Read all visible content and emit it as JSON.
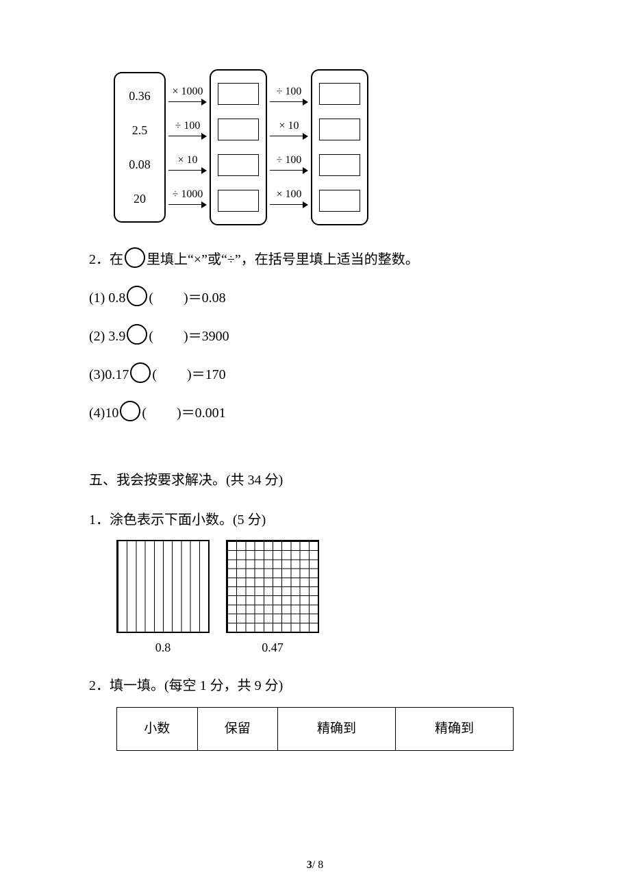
{
  "flow": {
    "rows": [
      {
        "start": "0.36",
        "op1": "× 1000",
        "op2": "÷ 100"
      },
      {
        "start": "2.5",
        "op1": "÷ 100",
        "op2": "× 10"
      },
      {
        "start": "0.08",
        "op1": "× 10",
        "op2": "÷ 100"
      },
      {
        "start": "20",
        "op1": "÷ 1000",
        "op2": "× 100"
      }
    ]
  },
  "q2": {
    "prompt_pre": "2．在",
    "prompt_post": "里填上“×”或“÷”，在括号里填上适当的整数。",
    "items": [
      {
        "label": "(1) 0.8",
        "suffix": "＝0.08"
      },
      {
        "label": "(2) 3.9",
        "suffix": "＝3900"
      },
      {
        "label": "(3)0.17",
        "suffix": "＝170"
      },
      {
        "label": "(4)10",
        "suffix": "＝0.001"
      }
    ]
  },
  "section5": {
    "title": "五、我会按要求解决。(共 34 分)",
    "p1_title": "1．涂色表示下面小数。(5 分)",
    "grids": [
      {
        "columns": 10,
        "rows": 1,
        "label": "0.8"
      },
      {
        "columns": 10,
        "rows": 10,
        "label": "0.47"
      }
    ],
    "p2_title": "2．填一填。(每空 1 分，共 9 分)",
    "table_headers": [
      "小数",
      "保留",
      "精确到",
      "精确到"
    ]
  },
  "footer": {
    "page": "3",
    "total": "8",
    "sep": "/ "
  }
}
